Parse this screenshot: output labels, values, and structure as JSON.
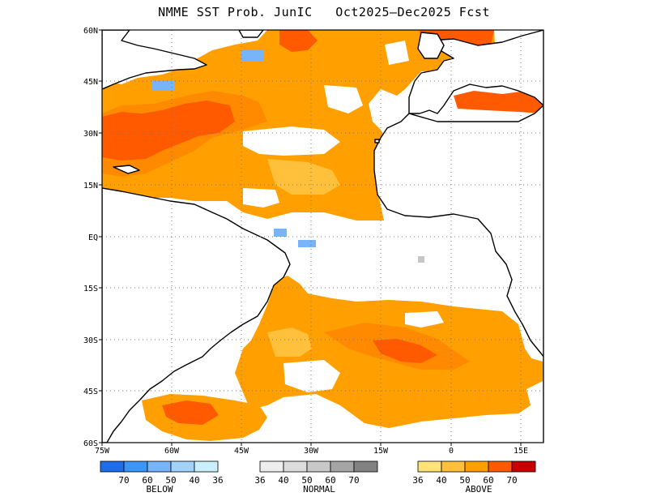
{
  "title": "NMME SST Prob. JunIC   Oct2025–Dec2025 Fcst",
  "lat_labels": [
    "60N",
    "45N",
    "30N",
    "15N",
    "EQ",
    "15S",
    "30S",
    "45S",
    "60S"
  ],
  "lon_labels": [
    "75W",
    "60W",
    "45W",
    "30W",
    "15W",
    "0",
    "15E"
  ],
  "legend": {
    "below": {
      "title": "BELOW",
      "ticks": [
        "70",
        "60",
        "50",
        "40",
        "36"
      ],
      "colors": [
        "#1e6eeb",
        "#3c96f5",
        "#78b4fa",
        "#a0d2fa",
        "#c8f0ff"
      ]
    },
    "normal": {
      "title": "NORMAL",
      "ticks": [
        "36",
        "40",
        "50",
        "60",
        "70"
      ],
      "colors": [
        "#eeeeee",
        "#dcdcdc",
        "#c8c8c8",
        "#a5a5a5",
        "#828282"
      ]
    },
    "above": {
      "title": "ABOVE",
      "ticks": [
        "36",
        "40",
        "50",
        "60",
        "70"
      ],
      "colors": [
        "#ffe27a",
        "#ffc03c",
        "#ffa000",
        "#ff5a00",
        "#c80000"
      ]
    }
  }
}
